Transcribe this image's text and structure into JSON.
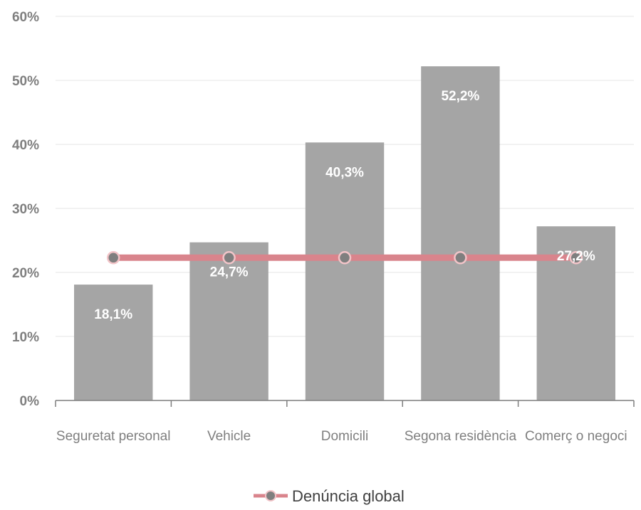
{
  "chart_data": {
    "type": "bar",
    "categories": [
      "Seguretat personal",
      "Vehicle",
      "Domicili",
      "Segona residència",
      "Comerç o negoci"
    ],
    "values": [
      18.1,
      24.7,
      40.3,
      52.2,
      27.2
    ],
    "data_labels": [
      "18,1%",
      "24,7%",
      "40,3%",
      "52,2%",
      "27,2%"
    ],
    "series": [
      {
        "name": "Denúncia global",
        "type": "line",
        "values": [
          22.3,
          22.3,
          22.3,
          22.3,
          22.3
        ]
      }
    ],
    "ylim": [
      0,
      60
    ],
    "y_ticks": [
      0,
      10,
      20,
      30,
      40,
      50,
      60
    ],
    "y_tick_labels": [
      "0%",
      "10%",
      "20%",
      "30%",
      "40%",
      "50%",
      "60%"
    ],
    "grid": true,
    "legend_position": "bottom",
    "colors": {
      "bars": "#a5a5a5",
      "line": "#d9848c",
      "marker_fill": "#7f7f7f",
      "marker_stroke": "#f2c4c8",
      "grid": "#eeeeee",
      "axis": "#7f7f7f"
    }
  }
}
